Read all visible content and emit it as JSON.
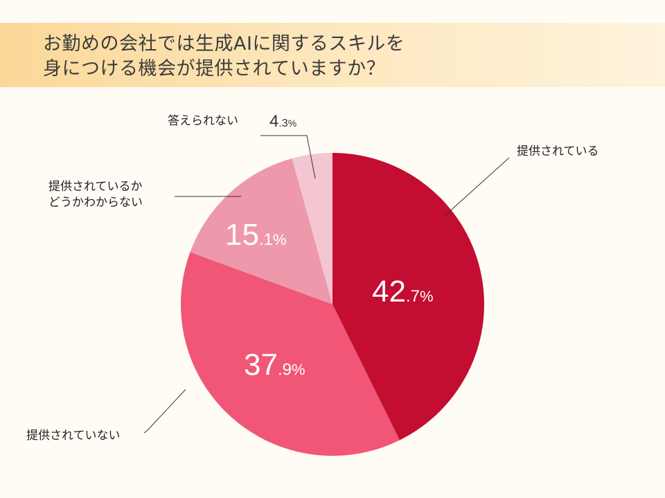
{
  "title": {
    "line1": "お勤めの会社では生成AIに関するスキルを",
    "line2": "身につける機会が提供されていますか？"
  },
  "colors": {
    "header_start": "#fbd898",
    "header_end": "#fff3dd",
    "background": "#fffcf5"
  },
  "chart_data": {
    "type": "pie",
    "title": "お勤めの会社では生成AIに関するスキルを身につける機会が提供されていますか？",
    "start": "12 o'clock, clockwise",
    "slices": [
      {
        "label": "提供されている",
        "value": 42.7,
        "int": "42",
        "dec": ".7",
        "sym": "%",
        "color": "#c30d31"
      },
      {
        "label": "提供されていない",
        "value": 37.9,
        "int": "37",
        "dec": ".9",
        "sym": "%",
        "color": "#f15676"
      },
      {
        "label": "提供されているかどうかわからない",
        "label_line1": "提供されているか",
        "label_line2": "どうかわからない",
        "value": 15.1,
        "int": "15",
        "dec": ".1",
        "sym": "%",
        "color": "#ee98ab"
      },
      {
        "label": "答えられない",
        "value": 4.3,
        "int": "4",
        "dec": ".3",
        "sym": "%",
        "color": "#f4c6d2"
      }
    ]
  }
}
